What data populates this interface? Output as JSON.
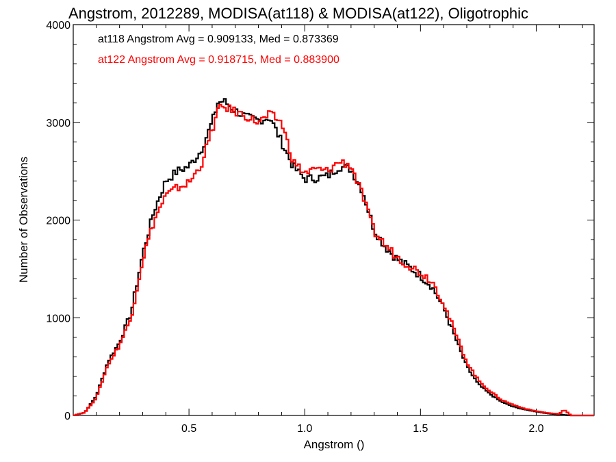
{
  "chart_data": {
    "type": "line",
    "title": "Angstrom, 2012289, MODISA(at118) & MODISA(at122), Oligotrophic",
    "xlabel": "Angstrom ()",
    "ylabel": "Number of Observations",
    "xlim": [
      0.0,
      2.25
    ],
    "ylim": [
      0,
      4000
    ],
    "xticks": [
      0.5,
      1.0,
      1.5,
      2.0
    ],
    "xtick_labels": [
      "0.5",
      "1.0",
      "1.5",
      "2.0"
    ],
    "yticks": [
      0,
      1000,
      2000,
      3000,
      4000
    ],
    "ytick_labels": [
      "0",
      "1000",
      "2000",
      "3000",
      "4000"
    ],
    "grid": false,
    "legend_position": "top-left",
    "series": [
      {
        "name": "at118 Angstrom Avg = 0.909133, Med = 0.873369",
        "color": "#000000",
        "x": [
          0.0,
          0.05,
          0.1,
          0.15,
          0.2,
          0.25,
          0.3,
          0.35,
          0.4,
          0.45,
          0.5,
          0.55,
          0.6,
          0.625,
          0.65,
          0.7,
          0.75,
          0.8,
          0.85,
          0.9,
          0.95,
          1.0,
          1.05,
          1.1,
          1.15,
          1.2,
          1.25,
          1.3,
          1.35,
          1.4,
          1.45,
          1.5,
          1.55,
          1.6,
          1.65,
          1.7,
          1.75,
          1.8,
          1.85,
          1.9,
          1.95,
          2.0,
          2.05,
          2.1,
          2.15,
          2.2,
          2.25
        ],
        "values": [
          0,
          30,
          200,
          550,
          750,
          1050,
          1650,
          2100,
          2400,
          2500,
          2550,
          2700,
          3000,
          3200,
          3220,
          3120,
          3050,
          3020,
          3050,
          2800,
          2550,
          2420,
          2430,
          2450,
          2550,
          2520,
          2300,
          1900,
          1720,
          1600,
          1520,
          1430,
          1320,
          1100,
          800,
          500,
          320,
          220,
          140,
          90,
          60,
          40,
          20,
          10,
          0,
          0,
          0
        ]
      },
      {
        "name": "at122 Angstrom Avg = 0.918715, Med = 0.883900",
        "color": "#ff0000",
        "x": [
          0.0,
          0.05,
          0.1,
          0.15,
          0.2,
          0.25,
          0.3,
          0.35,
          0.4,
          0.45,
          0.5,
          0.55,
          0.6,
          0.625,
          0.65,
          0.7,
          0.75,
          0.8,
          0.85,
          0.9,
          0.95,
          1.0,
          1.05,
          1.1,
          1.15,
          1.2,
          1.25,
          1.3,
          1.35,
          1.4,
          1.45,
          1.5,
          1.55,
          1.6,
          1.65,
          1.7,
          1.75,
          1.8,
          1.85,
          1.9,
          1.95,
          2.0,
          2.05,
          2.1,
          2.12,
          2.15,
          2.2,
          2.25
        ],
        "values": [
          0,
          30,
          180,
          520,
          720,
          1000,
          1600,
          2000,
          2250,
          2330,
          2380,
          2550,
          2920,
          3120,
          3160,
          3110,
          3060,
          3000,
          3080,
          3000,
          2600,
          2480,
          2520,
          2500,
          2600,
          2560,
          2250,
          1880,
          1740,
          1620,
          1540,
          1460,
          1380,
          1150,
          850,
          550,
          360,
          250,
          160,
          110,
          70,
          45,
          25,
          15,
          60,
          0,
          0,
          0
        ]
      }
    ]
  }
}
